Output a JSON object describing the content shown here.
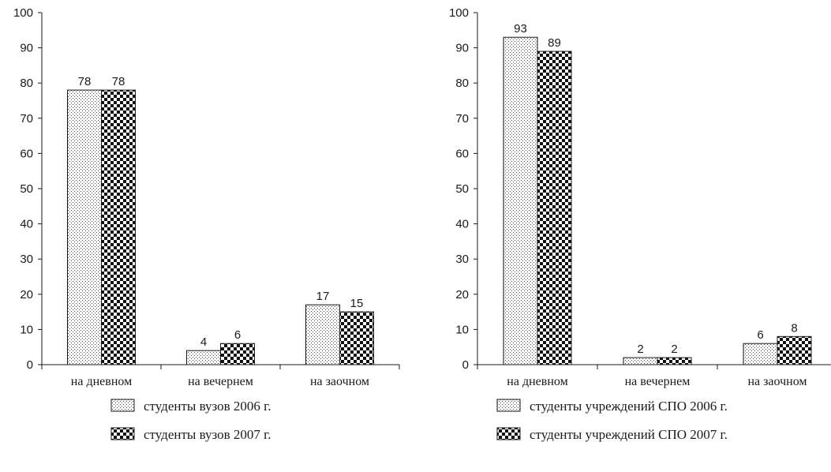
{
  "chart_data": [
    {
      "type": "bar",
      "categories": [
        "на дневном",
        "на вечернем",
        "на заочном"
      ],
      "ylim": [
        0,
        100
      ],
      "yticks": [
        0,
        10,
        20,
        30,
        40,
        50,
        60,
        70,
        80,
        90,
        100
      ],
      "grid": false,
      "legend_position": "bottom",
      "series": [
        {
          "name": "студенты вузов 2006 г.",
          "pattern": "dots",
          "values": [
            78,
            4,
            17
          ]
        },
        {
          "name": "студенты вузов 2007 г.",
          "pattern": "checker",
          "values": [
            78,
            6,
            15
          ]
        }
      ]
    },
    {
      "type": "bar",
      "categories": [
        "на дневном",
        "на вечернем",
        "на заочном"
      ],
      "ylim": [
        0,
        100
      ],
      "yticks": [
        0,
        10,
        20,
        30,
        40,
        50,
        60,
        70,
        80,
        90,
        100
      ],
      "grid": false,
      "legend_position": "bottom",
      "series": [
        {
          "name": "студенты учреждений СПО 2006 г.",
          "pattern": "dots",
          "values": [
            93,
            2,
            6
          ]
        },
        {
          "name": "студенты учреждений СПО 2007 г.",
          "pattern": "checker",
          "values": [
            89,
            2,
            8
          ]
        }
      ]
    }
  ],
  "colors": {
    "ink": "#1a1a1a",
    "background": "#ffffff"
  }
}
